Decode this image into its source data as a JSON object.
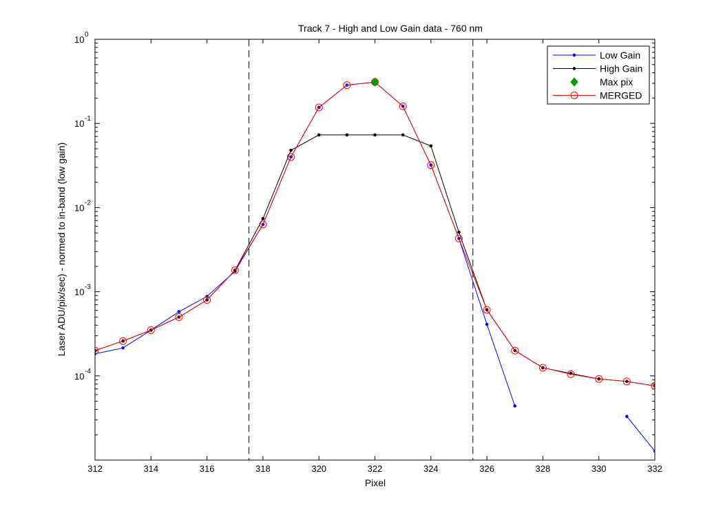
{
  "chart_data": {
    "type": "line",
    "title": "Track 7 - High and Low Gain data - 760 nm",
    "xlabel": "Pixel",
    "ylabel": "Laser ADU/pix/sec) - normed to in-band (low gain)",
    "xlim": [
      312,
      332
    ],
    "ylim": [
      1e-05,
      1
    ],
    "yscale": "log",
    "x_ticks": [
      "312",
      "314",
      "316",
      "318",
      "320",
      "322",
      "324",
      "326",
      "328",
      "330",
      "332"
    ],
    "y_tick_labels": [
      {
        "base": "10",
        "exp": "0"
      },
      {
        "base": "10",
        "exp": "-1"
      },
      {
        "base": "10",
        "exp": "-2"
      },
      {
        "base": "10",
        "exp": "-3"
      },
      {
        "base": "10",
        "exp": "-4"
      }
    ],
    "grid": false,
    "legend_position": "top-right",
    "vlines": [
      317.5,
      325.5
    ],
    "series": [
      {
        "name": "Low Gain",
        "color": "#0000ff",
        "marker": "dot",
        "x": [
          312,
          313,
          314,
          315,
          316,
          317,
          318,
          319,
          320,
          321,
          322,
          323,
          324,
          325,
          326,
          327,
          null,
          331,
          332
        ],
        "y": [
          0.000183,
          0.000215,
          0.00035,
          0.00058,
          0.00088,
          0.00175,
          0.0063,
          0.04,
          0.155,
          0.285,
          0.31,
          0.16,
          0.032,
          0.0043,
          0.00041,
          4.4e-05,
          null,
          3.3e-05,
          1.28e-05
        ]
      },
      {
        "name": "High Gain",
        "color": "#000000",
        "marker": "dot",
        "x": [
          312,
          313,
          314,
          315,
          316,
          317,
          318,
          319,
          320,
          321,
          322,
          323,
          324,
          325,
          326,
          327,
          328,
          329,
          330,
          331,
          332
        ],
        "y": [
          0.0002,
          0.00026,
          0.00035,
          0.0005,
          0.0008,
          0.0018,
          0.0074,
          0.048,
          0.073,
          0.073,
          0.073,
          0.073,
          0.054,
          0.0051,
          0.00061,
          0.0002,
          0.000125,
          0.000107,
          9.2e-05,
          8.6e-05,
          7.6e-05
        ]
      },
      {
        "name": "Max pix",
        "color": "#00a000",
        "marker": "diamond",
        "x": [
          322
        ],
        "y": [
          0.31
        ]
      },
      {
        "name": "MERGED",
        "color": "#ff0000",
        "marker": "circle",
        "x": [
          312,
          313,
          314,
          315,
          316,
          317,
          318,
          319,
          320,
          321,
          322,
          323,
          324,
          325,
          326,
          327,
          328,
          329,
          330,
          331,
          332
        ],
        "y": [
          0.0002,
          0.00026,
          0.00035,
          0.0005,
          0.0008,
          0.0018,
          0.0063,
          0.04,
          0.155,
          0.285,
          0.31,
          0.16,
          0.032,
          0.0043,
          0.00061,
          0.0002,
          0.000125,
          0.000105,
          9.2e-05,
          8.6e-05,
          7.6e-05
        ]
      }
    ]
  }
}
